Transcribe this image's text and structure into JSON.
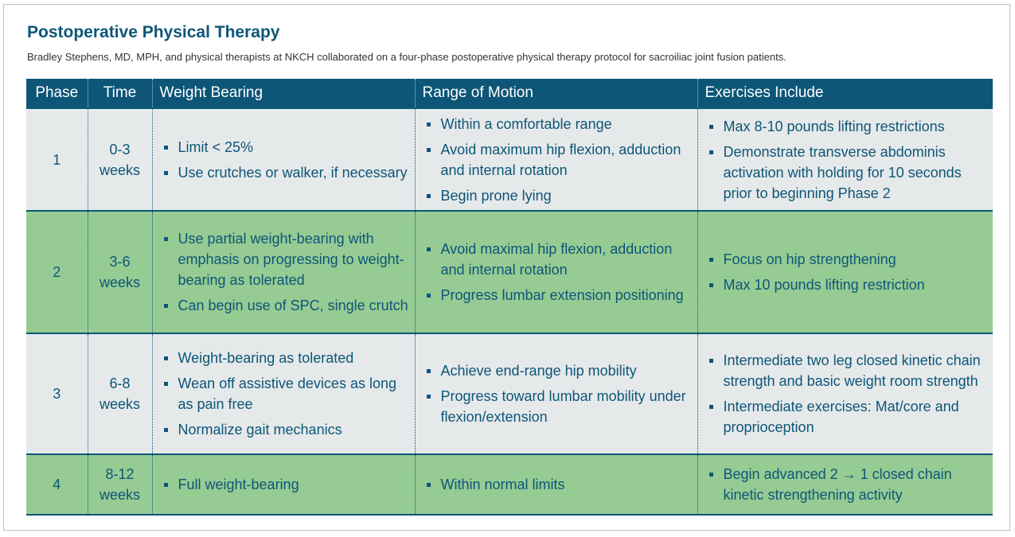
{
  "title": "Postoperative Physical Therapy",
  "subtitle": "Bradley Stephens, MD, MPH, and physical therapists at NKCH collaborated on a four-phase postoperative physical therapy protocol for sacroiliac joint fusion patients.",
  "colors": {
    "header_bg": "#0d5678",
    "row_gray": "#e6e9ea",
    "row_green": "#96cb93",
    "text": "#0d5678"
  },
  "headers": {
    "phase": "Phase",
    "time": "Time",
    "weight_bearing": "Weight Bearing",
    "range_of_motion": "Range of Motion",
    "exercises": "Exercises Include"
  },
  "rows": [
    {
      "phase": "1",
      "time": [
        "0-3",
        "weeks"
      ],
      "weight_bearing": [
        "Limit < 25%",
        "Use crutches or walker, if necessary"
      ],
      "range_of_motion": [
        "Within a comfortable range",
        "Avoid maximum hip flexion, adduction and internal rotation",
        "Begin prone lying"
      ],
      "exercises": [
        "Max 8-10 pounds lifting restrictions",
        "Demonstrate transverse abdominis activation with holding for 10 seconds prior to beginning Phase 2"
      ]
    },
    {
      "phase": "2",
      "time": [
        "3-6",
        "weeks"
      ],
      "weight_bearing": [
        "Use partial weight-bearing with emphasis on progressing to weight-bearing as tolerated",
        "Can begin use of SPC, single crutch"
      ],
      "range_of_motion": [
        "Avoid maximal hip flexion, adduction and internal rotation",
        "Progress lumbar extension positioning"
      ],
      "exercises": [
        "Focus on hip strengthening",
        "Max 10 pounds lifting restriction"
      ]
    },
    {
      "phase": "3",
      "time": [
        "6-8",
        "weeks"
      ],
      "weight_bearing": [
        "Weight-bearing as tolerated",
        "Wean off assistive devices as long as pain free",
        "Normalize gait mechanics"
      ],
      "range_of_motion": [
        "Achieve end-range hip mobility",
        "Progress toward lumbar mobility under flexion/extension"
      ],
      "exercises": [
        "Intermediate two leg closed kinetic chain strength and basic weight room strength",
        "Intermediate exercises: Mat/core and proprioception"
      ]
    },
    {
      "phase": "4",
      "time": [
        "8-12",
        "weeks"
      ],
      "weight_bearing": [
        "Full weight-bearing"
      ],
      "range_of_motion": [
        "Within normal limits"
      ],
      "exercises": [
        "Begin advanced 2 → 1 closed chain kinetic strengthening activity"
      ]
    }
  ]
}
